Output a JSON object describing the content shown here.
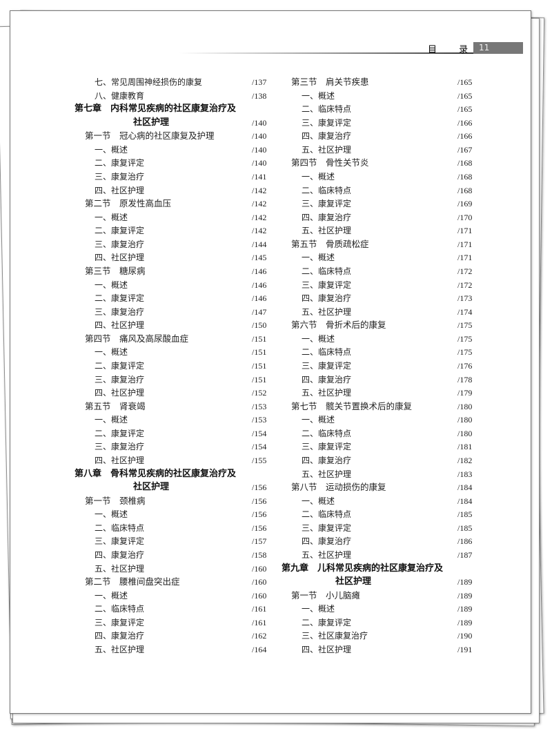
{
  "header": {
    "title": "目 录",
    "page_number": "11"
  },
  "columns": [
    [
      {
        "level": "item",
        "text": "七、常见周围神经损伤的康复",
        "page": "/137"
      },
      {
        "level": "item",
        "text": "八、健康教育",
        "page": "/138"
      },
      {
        "level": "chapter",
        "text": "第七章　内科常见疾病的社区康复治疗及",
        "page": ""
      },
      {
        "level": "chapter-cont",
        "text": "社区护理",
        "page": "/140"
      },
      {
        "level": "section",
        "text": "第一节　冠心病的社区康复及护理",
        "page": "/140"
      },
      {
        "level": "item",
        "text": "一、概述",
        "page": "/140"
      },
      {
        "level": "item",
        "text": "二、康复评定",
        "page": "/140"
      },
      {
        "level": "item",
        "text": "三、康复治疗",
        "page": "/141"
      },
      {
        "level": "item",
        "text": "四、社区护理",
        "page": "/142"
      },
      {
        "level": "section",
        "text": "第二节　原发性高血压",
        "page": "/142"
      },
      {
        "level": "item",
        "text": "一、概述",
        "page": "/142"
      },
      {
        "level": "item",
        "text": "二、康复评定",
        "page": "/142"
      },
      {
        "level": "item",
        "text": "三、康复治疗",
        "page": "/144"
      },
      {
        "level": "item",
        "text": "四、社区护理",
        "page": "/145"
      },
      {
        "level": "section",
        "text": "第三节　糖尿病",
        "page": "/146"
      },
      {
        "level": "item",
        "text": "一、概述",
        "page": "/146"
      },
      {
        "level": "item",
        "text": "二、康复评定",
        "page": "/146"
      },
      {
        "level": "item",
        "text": "三、康复治疗",
        "page": "/147"
      },
      {
        "level": "item",
        "text": "四、社区护理",
        "page": "/150"
      },
      {
        "level": "section",
        "text": "第四节　痛风及高尿酸血症",
        "page": "/151"
      },
      {
        "level": "item",
        "text": "一、概述",
        "page": "/151"
      },
      {
        "level": "item",
        "text": "二、康复评定",
        "page": "/151"
      },
      {
        "level": "item",
        "text": "三、康复治疗",
        "page": "/151"
      },
      {
        "level": "item",
        "text": "四、社区护理",
        "page": "/152"
      },
      {
        "level": "section",
        "text": "第五节　肾衰竭",
        "page": "/153"
      },
      {
        "level": "item",
        "text": "一、概述",
        "page": "/153"
      },
      {
        "level": "item",
        "text": "二、康复评定",
        "page": "/154"
      },
      {
        "level": "item",
        "text": "三、康复治疗",
        "page": "/154"
      },
      {
        "level": "item",
        "text": "四、社区护理",
        "page": "/155"
      },
      {
        "level": "chapter",
        "text": "第八章　骨科常见疾病的社区康复治疗及",
        "page": ""
      },
      {
        "level": "chapter-cont",
        "text": "社区护理",
        "page": "/156"
      },
      {
        "level": "section",
        "text": "第一节　颈椎病",
        "page": "/156"
      },
      {
        "level": "item",
        "text": "一、概述",
        "page": "/156"
      },
      {
        "level": "item",
        "text": "二、临床特点",
        "page": "/156"
      },
      {
        "level": "item",
        "text": "三、康复评定",
        "page": "/157"
      },
      {
        "level": "item",
        "text": "四、康复治疗",
        "page": "/158"
      },
      {
        "level": "item",
        "text": "五、社区护理",
        "page": "/160"
      },
      {
        "level": "section",
        "text": "第二节　腰椎间盘突出症",
        "page": "/160"
      },
      {
        "level": "item",
        "text": "一、概述",
        "page": "/160"
      },
      {
        "level": "item",
        "text": "二、临床特点",
        "page": "/161"
      },
      {
        "level": "item",
        "text": "三、康复评定",
        "page": "/161"
      },
      {
        "level": "item",
        "text": "四、康复治疗",
        "page": "/162"
      },
      {
        "level": "item",
        "text": "五、社区护理",
        "page": "/164"
      }
    ],
    [
      {
        "level": "section",
        "text": "第三节　肩关节疾患",
        "page": "/165"
      },
      {
        "level": "item",
        "text": "一、概述",
        "page": "/165"
      },
      {
        "level": "item",
        "text": "二、临床特点",
        "page": "/165"
      },
      {
        "level": "item",
        "text": "三、康复评定",
        "page": "/166"
      },
      {
        "level": "item",
        "text": "四、康复治疗",
        "page": "/166"
      },
      {
        "level": "item",
        "text": "五、社区护理",
        "page": "/167"
      },
      {
        "level": "section",
        "text": "第四节　骨性关节炎",
        "page": "/168"
      },
      {
        "level": "item",
        "text": "一、概述",
        "page": "/168"
      },
      {
        "level": "item",
        "text": "二、临床特点",
        "page": "/168"
      },
      {
        "level": "item",
        "text": "三、康复评定",
        "page": "/169"
      },
      {
        "level": "item",
        "text": "四、康复治疗",
        "page": "/170"
      },
      {
        "level": "item",
        "text": "五、社区护理",
        "page": "/171"
      },
      {
        "level": "section",
        "text": "第五节　骨质疏松症",
        "page": "/171"
      },
      {
        "level": "item",
        "text": "一、概述",
        "page": "/171"
      },
      {
        "level": "item",
        "text": "二、临床特点",
        "page": "/172"
      },
      {
        "level": "item",
        "text": "三、康复评定",
        "page": "/172"
      },
      {
        "level": "item",
        "text": "四、康复治疗",
        "page": "/173"
      },
      {
        "level": "item",
        "text": "五、社区护理",
        "page": "/174"
      },
      {
        "level": "section",
        "text": "第六节　骨折术后的康复",
        "page": "/175"
      },
      {
        "level": "item",
        "text": "一、概述",
        "page": "/175"
      },
      {
        "level": "item",
        "text": "二、临床特点",
        "page": "/175"
      },
      {
        "level": "item",
        "text": "三、康复评定",
        "page": "/176"
      },
      {
        "level": "item",
        "text": "四、康复治疗",
        "page": "/178"
      },
      {
        "level": "item",
        "text": "五、社区护理",
        "page": "/179"
      },
      {
        "level": "section",
        "text": "第七节　髋关节置换术后的康复",
        "page": "/180"
      },
      {
        "level": "item",
        "text": "一、概述",
        "page": "/180"
      },
      {
        "level": "item",
        "text": "二、临床特点",
        "page": "/180"
      },
      {
        "level": "item",
        "text": "三、康复评定",
        "page": "/181"
      },
      {
        "level": "item",
        "text": "四、康复治疗",
        "page": "/182"
      },
      {
        "level": "item",
        "text": "五、社区护理",
        "page": "/183"
      },
      {
        "level": "section",
        "text": "第八节　运动损伤的康复",
        "page": "/184"
      },
      {
        "level": "item",
        "text": "一、概述",
        "page": "/184"
      },
      {
        "level": "item",
        "text": "二、临床特点",
        "page": "/185"
      },
      {
        "level": "item",
        "text": "三、康复评定",
        "page": "/185"
      },
      {
        "level": "item",
        "text": "四、康复治疗",
        "page": "/186"
      },
      {
        "level": "item",
        "text": "五、社区护理",
        "page": "/187"
      },
      {
        "level": "chapter",
        "text": "第九章　儿科常见疾病的社区康复治疗及",
        "page": ""
      },
      {
        "level": "chapter-cont",
        "text": "社区护理",
        "page": "/189"
      },
      {
        "level": "section",
        "text": "第一节　小儿脑瘫",
        "page": "/189"
      },
      {
        "level": "item",
        "text": "一、概述",
        "page": "/189"
      },
      {
        "level": "item",
        "text": "二、康复评定",
        "page": "/189"
      },
      {
        "level": "item",
        "text": "三、社区康复治疗",
        "page": "/190"
      },
      {
        "level": "item",
        "text": "四、社区护理",
        "page": "/191"
      }
    ]
  ]
}
